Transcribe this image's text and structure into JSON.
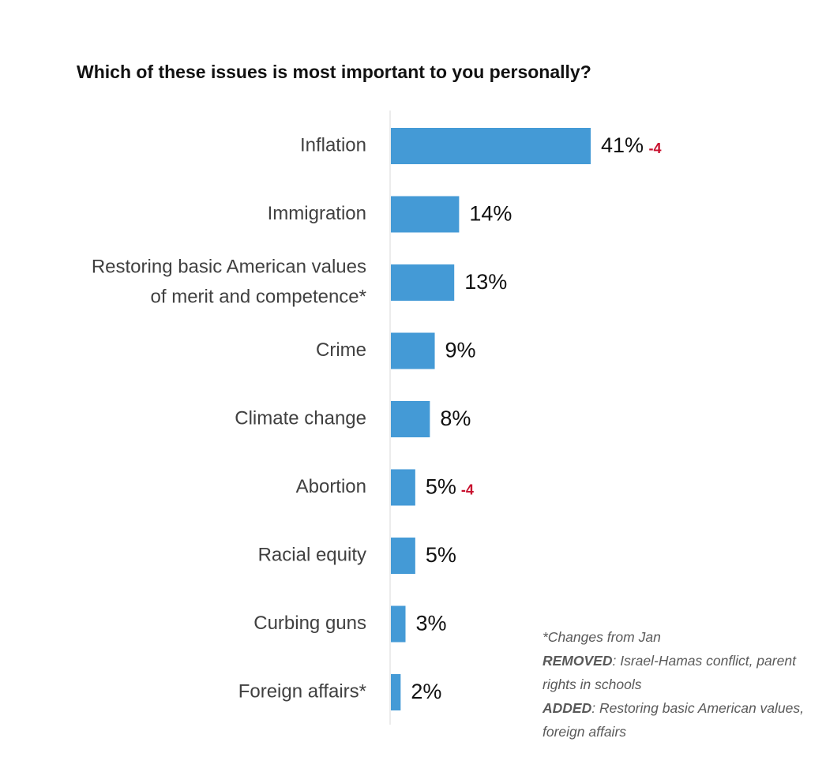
{
  "chart_data": {
    "type": "bar",
    "orientation": "horizontal",
    "title": "Which of these issues is most important to you personally?",
    "categories": [
      [
        "Inflation"
      ],
      [
        "Immigration"
      ],
      [
        "Restoring basic American values",
        "of merit and competence*"
      ],
      [
        "Crime"
      ],
      [
        "Climate change"
      ],
      [
        "Abortion"
      ],
      [
        "Racial equity"
      ],
      [
        "Curbing guns"
      ],
      [
        "Foreign affairs*"
      ]
    ],
    "values": [
      41,
      14,
      13,
      9,
      8,
      5,
      5,
      3,
      2
    ],
    "value_labels": [
      "41%",
      "14%",
      "13%",
      "9%",
      "8%",
      "5%",
      "5%",
      "3%",
      "2%"
    ],
    "changes": [
      "-4",
      "",
      "",
      "",
      "",
      "-4",
      "",
      "",
      ""
    ],
    "xlim": [
      0,
      41
    ],
    "grid": false,
    "bar_color": "#449ad6",
    "change_color": "#c8102e"
  },
  "footnote": {
    "line1": "*Changes from Jan",
    "removed_label": "REMOVED",
    "removed_text": ": Israel-Hamas conflict, parent rights in schools",
    "added_label": "ADDED",
    "added_text": ": Restoring basic American values, foreign affairs"
  }
}
